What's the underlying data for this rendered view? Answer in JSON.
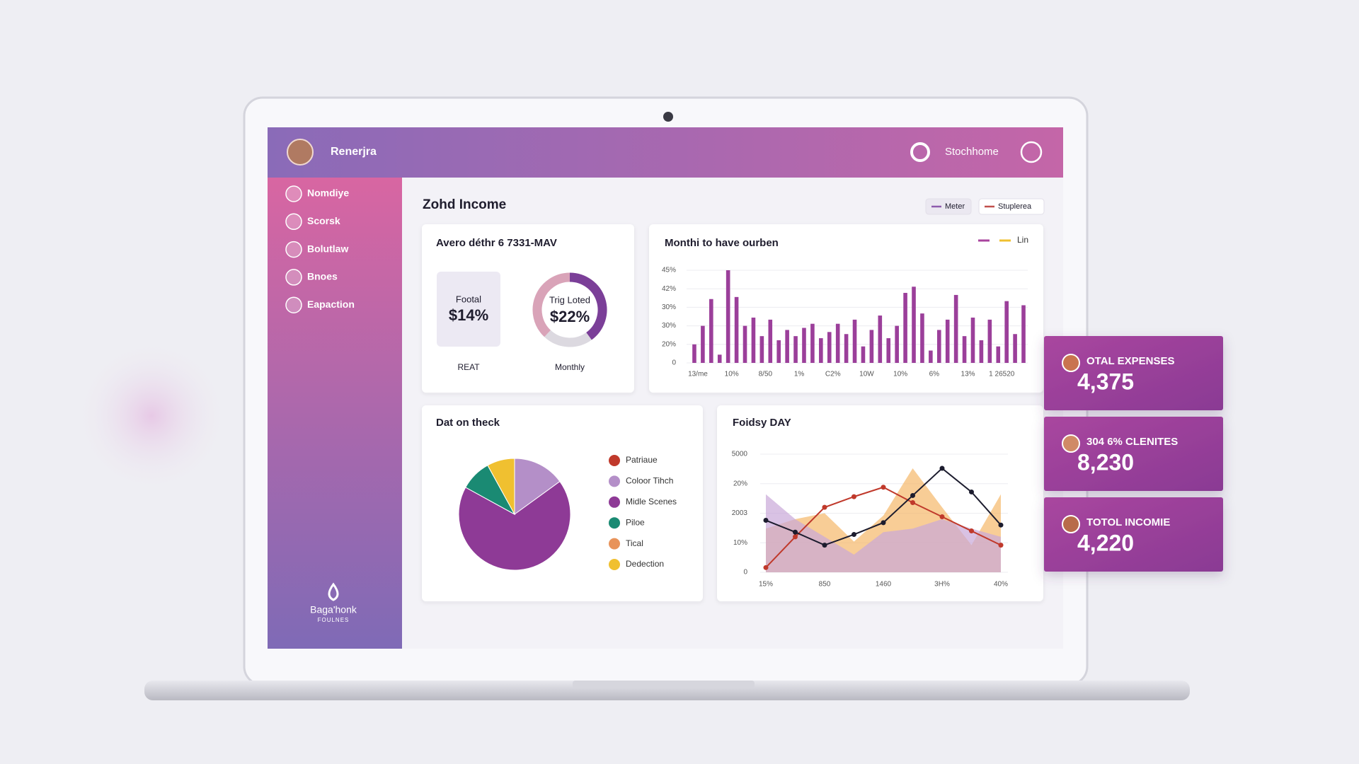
{
  "header": {
    "user": "Renerjra",
    "location": "Stochhome"
  },
  "sidebar": {
    "items": [
      "Nomdiye",
      "Scorsk",
      "Bolutlaw",
      "Bnoes",
      "Eapaction"
    ],
    "logo": "Baga'honk",
    "logo_sub": "FOULNES"
  },
  "main": {
    "title": "Zohd Income",
    "legend": [
      {
        "name": "Meter",
        "color": "#8e5cae"
      },
      {
        "name": "Stuplerea",
        "color": "#c0504d"
      }
    ]
  },
  "summary": {
    "title": "Avero déthr 6 7331-MAV",
    "box_title": "Footal",
    "box_value": "$14%",
    "box_label": "REAT",
    "donut_title": "Trig Loted",
    "donut_value": "$22%",
    "donut_label": "Monthly"
  },
  "chart_data": [
    {
      "type": "donut",
      "values": [
        40,
        22,
        38
      ],
      "colors": [
        "#7b3f98",
        "#dcd9e0",
        "#d9a3b8"
      ]
    },
    {
      "type": "bar",
      "title": "Monthi to have ourben",
      "color": "#9b3f9a",
      "legend": {
        "label": "Lin",
        "colors": [
          "#a9449e",
          "#f0c030"
        ]
      },
      "y_axis_labels": [
        "0",
        "20%",
        "30%",
        "30%",
        "42%",
        "45%"
      ],
      "ylim": [
        0,
        45
      ],
      "categories": [
        "13/me",
        null,
        null,
        null,
        "10%",
        null,
        null,
        null,
        "8/50",
        null,
        null,
        null,
        "1%",
        null,
        null,
        null,
        "C2%",
        null,
        null,
        null,
        "10W",
        null,
        null,
        null,
        "10%",
        null,
        null,
        null,
        "6%",
        null,
        null,
        null,
        "13%",
        null,
        null,
        null,
        "1 26520",
        null,
        null,
        null
      ],
      "values": [
        9,
        18,
        31,
        4,
        45,
        32,
        18,
        22,
        13,
        21,
        11,
        16,
        13,
        17,
        19,
        12,
        15,
        19,
        14,
        21,
        8,
        16,
        23,
        12,
        18,
        34,
        37,
        24,
        6,
        16,
        21,
        33,
        13,
        22,
        11,
        21,
        8,
        30,
        14,
        28
      ]
    },
    {
      "type": "pie",
      "title": "Dat on theck",
      "categories": [
        "Patriaue",
        "Coloor Tihch",
        "Midle Scenes",
        "Piloe",
        "Tical",
        "Dedection"
      ],
      "values": [
        0,
        15,
        68,
        9,
        0,
        8
      ],
      "colors": [
        "#c0392b",
        "#b48fc8",
        "#8e3a96",
        "#1a8a73",
        "#e8935a",
        "#f0c030"
      ]
    },
    {
      "type": "line",
      "title": "Foidsy DAY",
      "y_axis_labels": [
        "0",
        "10%",
        "2003",
        "20%",
        "5000"
      ],
      "ylim": [
        0,
        100
      ],
      "categories": [
        "15%",
        null,
        "850",
        null,
        "1460",
        null,
        "3H%",
        null,
        "40%"
      ],
      "series": [
        {
          "style": "area",
          "color": "#f5b86a",
          "values": [
            37,
            45,
            50,
            26,
            48,
            88,
            55,
            23,
            66
          ]
        },
        {
          "style": "area",
          "color": "#c9a8d8",
          "values": [
            66,
            45,
            30,
            15,
            34,
            37,
            45,
            37,
            30
          ]
        },
        {
          "style": "line",
          "color": "#c0392b",
          "values": [
            4,
            30,
            55,
            64,
            72,
            59,
            47,
            35,
            23
          ]
        },
        {
          "style": "line",
          "color": "#1c1c2e",
          "values": [
            44,
            34,
            23,
            32,
            42,
            65,
            88,
            68,
            40
          ]
        }
      ]
    }
  ],
  "stats": [
    {
      "label": "OTAL EXPENSES",
      "value": "4,375"
    },
    {
      "label": "304 6% CLENITES",
      "value": "8,230"
    },
    {
      "label": "TOTOL INCOMIE",
      "value": "4,220"
    }
  ]
}
